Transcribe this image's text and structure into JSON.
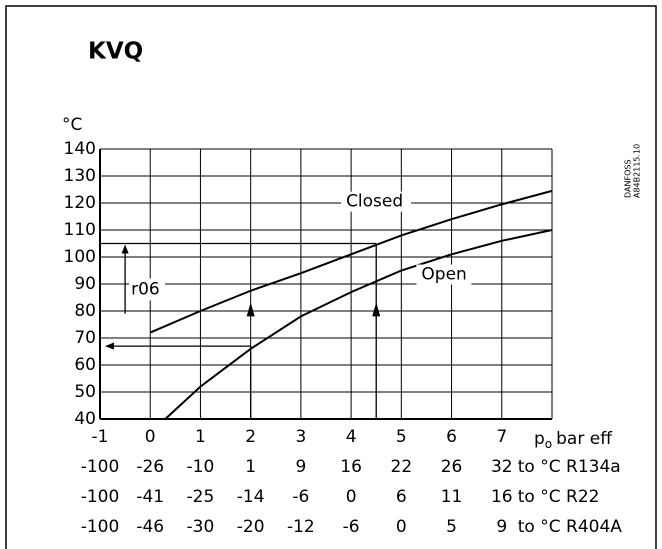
{
  "chart_data": {
    "type": "line",
    "title": "KVQ",
    "ylabel": "°C",
    "xlabel": "p",
    "xlabel_sub": "o",
    "xlabel_unit": "bar eff",
    "side_text": [
      "DANFOSS",
      "A84B2115.10"
    ],
    "xlim": [
      -1,
      8
    ],
    "ylim": [
      40,
      140
    ],
    "xticks": [
      -1,
      0,
      1,
      2,
      3,
      4,
      5,
      6,
      7
    ],
    "yticks": [
      40,
      50,
      60,
      70,
      80,
      90,
      100,
      110,
      120,
      130,
      140
    ],
    "grid": true,
    "series": [
      {
        "name": "Closed",
        "color": "#000000",
        "x": [
          0,
          1,
          2,
          3,
          4,
          5,
          6,
          7,
          8
        ],
        "values": [
          72,
          80,
          87.5,
          94,
          101,
          108,
          114,
          119.5,
          124.5
        ]
      },
      {
        "name": "Open",
        "color": "#000000",
        "x": [
          0.3,
          1,
          2,
          3,
          4,
          5,
          6,
          7,
          8
        ],
        "values": [
          40,
          52,
          66,
          78,
          87,
          95,
          101,
          106,
          110
        ]
      }
    ],
    "annotation": "r06",
    "guides": [
      {
        "x": 4.5,
        "y": 105
      },
      {
        "x": 2,
        "y": 67
      }
    ],
    "r06_arrow": {
      "x": -0.5,
      "from": 79,
      "to": 105
    },
    "scales": [
      {
        "label": "to °C R134a",
        "values": [
          -100,
          -26,
          -10,
          1,
          9,
          16,
          22,
          26,
          32
        ]
      },
      {
        "label": "to °C R22",
        "values": [
          -100,
          -41,
          -25,
          -14,
          -6,
          0,
          6,
          11,
          16
        ]
      },
      {
        "label": "to °C R404A",
        "values": [
          -100,
          -46,
          -30,
          -20,
          -12,
          -6,
          0,
          5,
          9
        ]
      }
    ]
  }
}
